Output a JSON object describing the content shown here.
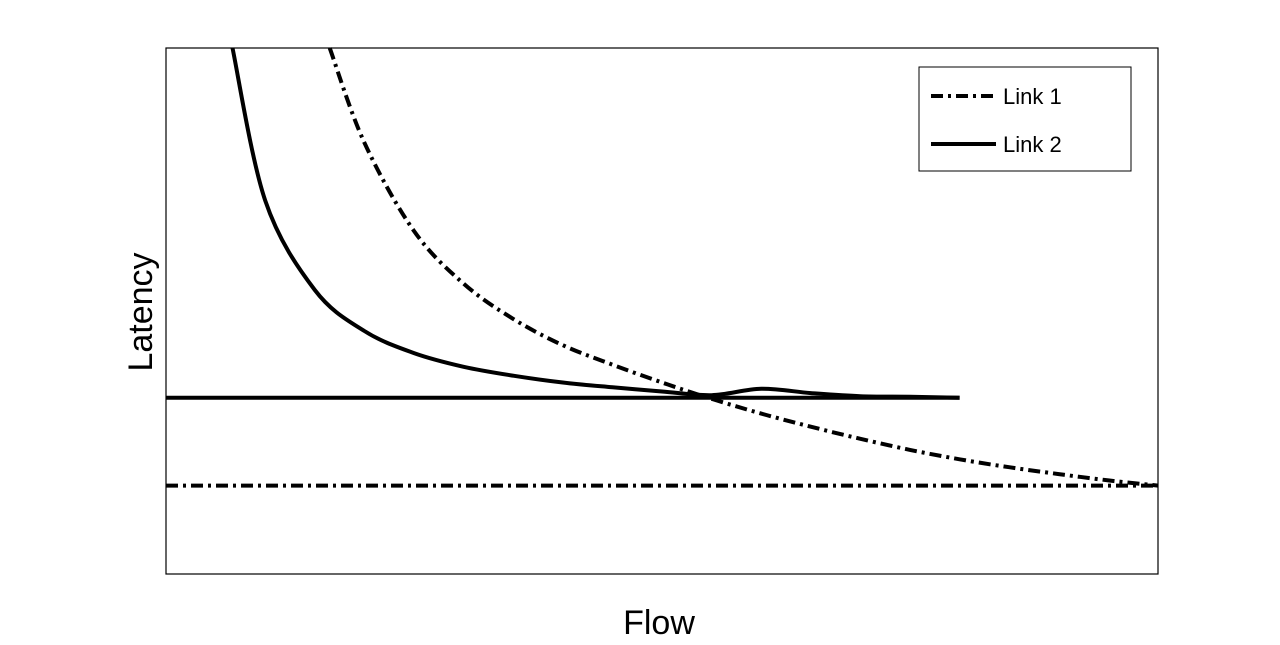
{
  "chart_data": {
    "type": "line",
    "title": "",
    "xlabel": "Flow",
    "ylabel": "Latency",
    "xlim": [
      0,
      1
    ],
    "ylim": [
      0,
      1
    ],
    "grid": false,
    "show_ticks": false,
    "legend": {
      "placement": "top-right",
      "entries": [
        "Link 1",
        "Link 2"
      ]
    },
    "series": [
      {
        "name": "Link 1",
        "style": "dash-dot",
        "color": "#000000",
        "x": [
          0.165,
          0.2,
          0.25,
          0.3,
          0.35,
          0.4,
          0.45,
          0.5,
          0.55,
          0.6,
          0.65,
          0.7,
          0.75,
          0.8,
          0.85,
          0.9,
          0.95,
          1.0
        ],
        "y": [
          1.0,
          0.82,
          0.652,
          0.552,
          0.485,
          0.435,
          0.398,
          0.364,
          0.333,
          0.305,
          0.28,
          0.257,
          0.236,
          0.218,
          0.203,
          0.19,
          0.178,
          0.168
        ]
      },
      {
        "name": "Link 2",
        "style": "solid",
        "color": "#000000",
        "x": [
          0.067,
          0.1,
          0.15,
          0.2,
          0.25,
          0.3,
          0.35,
          0.4,
          0.45,
          0.5,
          0.55,
          0.6,
          0.65,
          0.7,
          0.75,
          0.8
        ],
        "y": [
          1.0,
          0.71,
          0.54,
          0.462,
          0.42,
          0.394,
          0.377,
          0.364,
          0.355,
          0.347,
          0.34,
          0.352,
          0.344,
          0.338,
          0.337,
          0.335
        ]
      },
      {
        "name": "",
        "style": "solid",
        "color": "#000000",
        "x": [
          0,
          0.8
        ],
        "y": [
          0.335,
          0.335
        ]
      },
      {
        "name": "",
        "style": "dash-dot",
        "color": "#000000",
        "x": [
          0,
          1.0
        ],
        "y": [
          0.168,
          0.168
        ]
      }
    ]
  }
}
